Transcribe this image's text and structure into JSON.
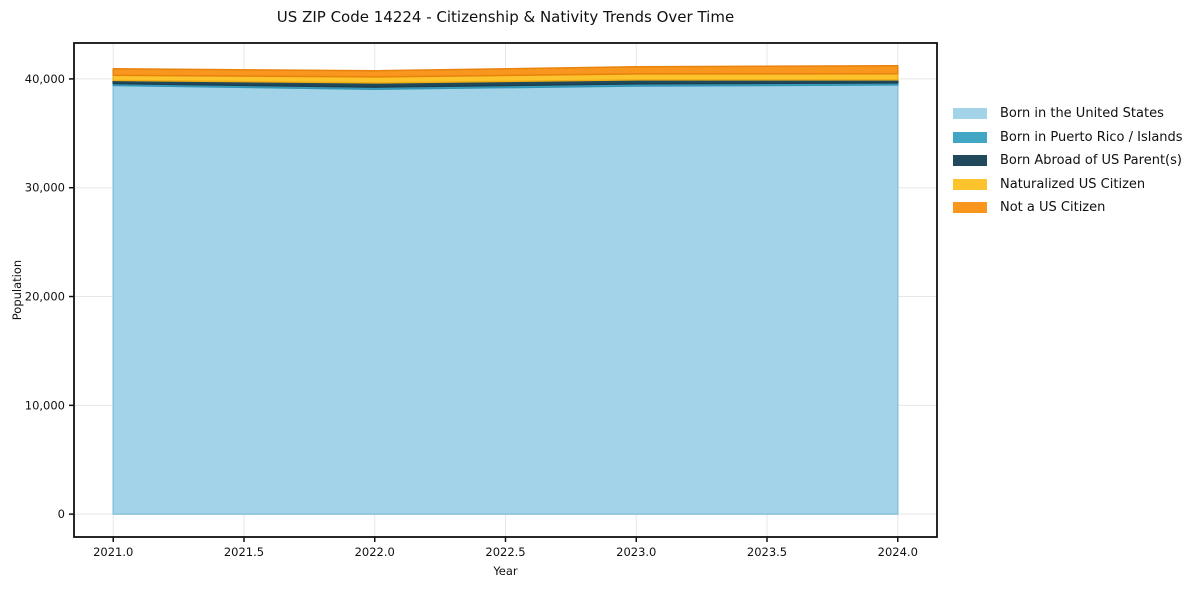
{
  "chart_data": {
    "type": "area",
    "stacked": true,
    "title": "US ZIP Code 14224 - Citizenship & Nativity Trends Over Time",
    "xlabel": "Year",
    "ylabel": "Population",
    "x": [
      2021,
      2022,
      2023,
      2024
    ],
    "series": [
      {
        "name": "Born in the United States",
        "color": "#a3d3e8",
        "edge_color": "#8cc2dc",
        "values": [
          39400,
          39050,
          39350,
          39450
        ]
      },
      {
        "name": "Born in Puerto Rico / Islands",
        "color": "#41a6c4",
        "edge_color": "#3295b5",
        "values": [
          180,
          200,
          190,
          180
        ]
      },
      {
        "name": "Born Abroad of US Parent(s)",
        "color": "#21495c",
        "edge_color": "#1c3f50",
        "values": [
          280,
          380,
          370,
          280
        ]
      },
      {
        "name": "Naturalized US Citizen",
        "color": "#fcc32d",
        "edge_color": "#f0ae14",
        "values": [
          470,
          550,
          550,
          560
        ]
      },
      {
        "name": "Not a US Citizen",
        "color": "#f8961e",
        "edge_color": "#e8830d",
        "values": [
          600,
          570,
          650,
          740
        ]
      }
    ],
    "xlim": [
      2020.85,
      2024.15
    ],
    "ylim": [
      -2100,
      43300
    ],
    "xticks": {
      "values": [
        2021,
        2021.5,
        2022,
        2022.5,
        2023,
        2023.5,
        2024
      ],
      "labels": [
        "2021.0",
        "2021.5",
        "2022.0",
        "2022.5",
        "2023.0",
        "2023.5",
        "2024.0"
      ]
    },
    "yticks": {
      "values": [
        0,
        10000,
        20000,
        30000,
        40000
      ],
      "labels": [
        "0",
        "10,000",
        "20,000",
        "30,000",
        "40,000"
      ]
    },
    "grid": true,
    "grid_color": "#e7e7e7",
    "spine_color": "#111111",
    "background_color": "#ffffff",
    "legend_position": "right-outside"
  }
}
